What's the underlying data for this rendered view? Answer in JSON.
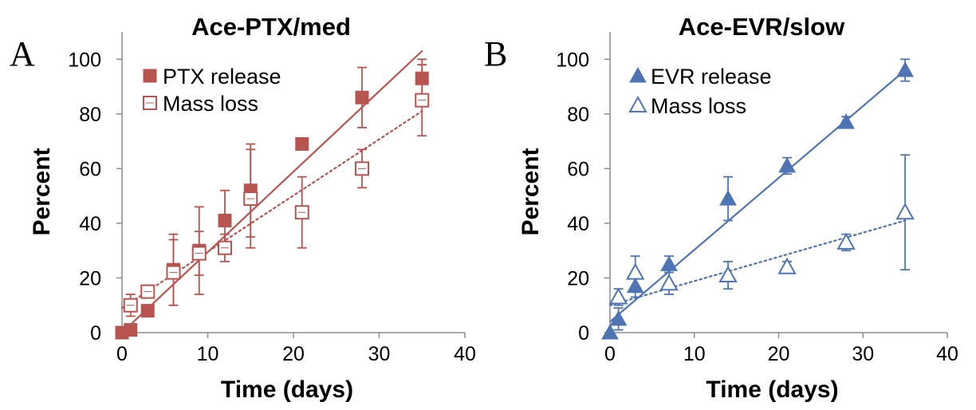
{
  "chart_data": [
    {
      "type": "scatter",
      "panel_label": "A",
      "title": "Ace-PTX/med",
      "xlabel": "Time (days)",
      "ylabel": "Percent",
      "xlim": [
        0,
        40
      ],
      "ylim": [
        0,
        110
      ],
      "xticks": [
        0,
        10,
        20,
        30,
        40
      ],
      "yticks": [
        0,
        20,
        40,
        60,
        80,
        100
      ],
      "grid": false,
      "legend_position": "top-left",
      "color": "#b85450",
      "series": [
        {
          "name": "PTX release",
          "marker": "square-filled",
          "trendline": "solid",
          "trend": [
            [
              0,
              0
            ],
            [
              35,
              103
            ]
          ],
          "x": [
            0,
            1,
            3,
            6,
            9,
            12,
            15,
            21,
            28,
            35
          ],
          "y": [
            0,
            1,
            8,
            23,
            30,
            41,
            52,
            69,
            86,
            93
          ],
          "err": [
            0,
            0,
            0,
            13,
            16,
            11,
            17,
            2,
            11,
            7
          ]
        },
        {
          "name": "Mass loss",
          "marker": "square-open",
          "trendline": "dotted",
          "trend": [
            [
              0,
              9
            ],
            [
              35,
              81
            ]
          ],
          "x": [
            1,
            3,
            6,
            9,
            12,
            15,
            21,
            28,
            35
          ],
          "y": [
            10,
            15,
            22,
            29,
            31,
            49,
            44,
            60,
            85
          ],
          "err": [
            4,
            2,
            12,
            8,
            5,
            18,
            13,
            7,
            13
          ]
        }
      ]
    },
    {
      "type": "scatter",
      "panel_label": "B",
      "title": "Ace-EVR/slow",
      "xlabel": "Time (days)",
      "ylabel": "Percent",
      "xlim": [
        0,
        40
      ],
      "ylim": [
        0,
        110
      ],
      "xticks": [
        0,
        10,
        20,
        30,
        40
      ],
      "yticks": [
        0,
        20,
        40,
        60,
        80,
        100
      ],
      "grid": false,
      "legend_position": "top-left",
      "color": "#4f74b4",
      "series": [
        {
          "name": "EVR release",
          "marker": "triangle-filled",
          "trendline": "solid",
          "trend": [
            [
              0,
              4
            ],
            [
              35,
              96
            ]
          ],
          "x": [
            0,
            1,
            3,
            7,
            14,
            21,
            28,
            35
          ],
          "y": [
            0,
            5,
            17,
            25,
            49,
            61,
            77,
            96
          ],
          "err": [
            0,
            4,
            4,
            3,
            8,
            3,
            2,
            4
          ]
        },
        {
          "name": "Mass loss",
          "marker": "triangle-open",
          "trendline": "dotted",
          "trend": [
            [
              0,
              10
            ],
            [
              35,
              41
            ]
          ],
          "x": [
            1,
            3,
            7,
            14,
            21,
            28,
            35
          ],
          "y": [
            13,
            22,
            18,
            21,
            24,
            33,
            44
          ],
          "err": [
            3,
            6,
            4,
            5,
            2,
            3,
            21
          ]
        }
      ]
    }
  ]
}
